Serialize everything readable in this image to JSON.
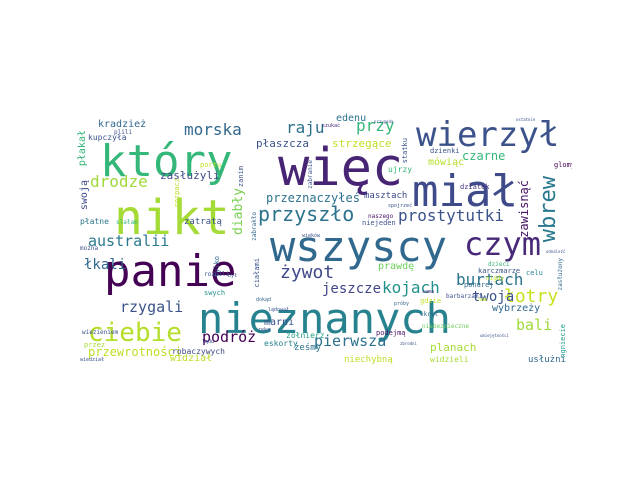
{
  "title": "",
  "words": [
    {
      "text": "więc",
      "color": "#482475"
    },
    {
      "text": "nikt",
      "color": "#a5db36"
    },
    {
      "text": "który",
      "color": "#35b779"
    },
    {
      "text": "panie",
      "color": "#440154"
    },
    {
      "text": "miał",
      "color": "#3e4a89"
    },
    {
      "text": "wszyscy",
      "color": "#31688e"
    },
    {
      "text": "nieznanych",
      "color": "#26828e"
    },
    {
      "text": "wierzył",
      "color": "#3b528b"
    },
    {
      "text": "czym",
      "color": "#482878"
    },
    {
      "text": "ciebie",
      "color": "#b5de2b"
    },
    {
      "text": "przyszło",
      "color": "#2c728e"
    },
    {
      "text": "wbrew",
      "color": "#2a788e"
    },
    {
      "text": "prostytutki",
      "color": "#3b528b"
    },
    {
      "text": "żywot",
      "color": "#3e4989"
    },
    {
      "text": "morska",
      "color": "#31688e"
    },
    {
      "text": "raju",
      "color": "#2d708e"
    },
    {
      "text": "przy",
      "color": "#35b779"
    },
    {
      "text": "drodze",
      "color": "#a0da39"
    },
    {
      "text": "australii",
      "color": "#2a788e"
    },
    {
      "text": "rzygali",
      "color": "#3b528b"
    },
    {
      "text": "kojach",
      "color": "#21918c"
    },
    {
      "text": "burtach",
      "color": "#2c728e"
    },
    {
      "text": "łotry",
      "color": "#cae11f"
    },
    {
      "text": "podróż",
      "color": "#440154"
    },
    {
      "text": "pierwsza",
      "color": "#2c728e"
    },
    {
      "text": "bali",
      "color": "#a0da39"
    },
    {
      "text": "twoja",
      "color": "#3b528b"
    },
    {
      "text": "jeszcze",
      "color": "#414487"
    },
    {
      "text": "diabły",
      "color": "#7ad151"
    },
    {
      "text": "łkali",
      "color": "#31688e"
    },
    {
      "text": "zawisnąć",
      "color": "#471365"
    },
    {
      "text": "przeznaczyłeś",
      "color": "#2c728e"
    },
    {
      "text": "przewrotności",
      "color": "#bddf26"
    },
    {
      "text": "zasłużyli",
      "color": "#3e4a89"
    },
    {
      "text": "czarne",
      "color": "#35b779"
    },
    {
      "text": "strzegące",
      "color": "#bddf26"
    },
    {
      "text": "płaszcza",
      "color": "#3b528b"
    },
    {
      "text": "kradzież",
      "color": "#31688e"
    },
    {
      "text": "edenu",
      "color": "#2c728e"
    },
    {
      "text": "mówiąc",
      "color": "#b5de2b"
    },
    {
      "text": "masztach",
      "color": "#3e4989"
    },
    {
      "text": "wybrzeży",
      "color": "#31688e"
    },
    {
      "text": "planach",
      "color": "#a5db36"
    },
    {
      "text": "prawdę",
      "color": "#6ccd5a"
    },
    {
      "text": "marni",
      "color": "#3b528b"
    },
    {
      "text": "zatratą",
      "color": "#3b528b"
    },
    {
      "text": "swoją",
      "color": "#3e4989"
    },
    {
      "text": "płatne",
      "color": "#2a788e"
    },
    {
      "text": "płakał",
      "color": "#35b779"
    },
    {
      "text": "kupczyła",
      "color": "#3b528b"
    },
    {
      "text": "eskorty",
      "color": "#26828e"
    },
    {
      "text": "żołnierz",
      "color": "#1f9e89"
    },
    {
      "text": "podejmą",
      "color": "#471365"
    },
    {
      "text": "niebezpieczne",
      "color": "#6ccd5a"
    },
    {
      "text": "widział",
      "color": "#bddf26"
    },
    {
      "text": "niechybną",
      "color": "#bddf26"
    },
    {
      "text": "usłużni",
      "color": "#31688e"
    },
    {
      "text": "widzieli",
      "color": "#a5db36"
    },
    {
      "text": "robaczywych",
      "color": "#3e4a89"
    },
    {
      "text": "wiezieniem",
      "color": "#3b528b"
    },
    {
      "text": "dzienki",
      "color": "#3b528b"
    },
    {
      "text": "dziatek",
      "color": "#46327e"
    },
    {
      "text": "ujrzy",
      "color": "#35b779"
    },
    {
      "text": "niejeden",
      "color": "#3b528b"
    },
    {
      "text": "karczmarze",
      "color": "#3b528b"
    },
    {
      "text": "rozpacz",
      "color": "#bddf26"
    },
    {
      "text": "gdzie",
      "color": "#bddf26"
    },
    {
      "text": "celu",
      "color": "#26828e"
    },
    {
      "text": "glomy",
      "color": "#440154"
    },
    {
      "text": "ponurej",
      "color": "#31688e"
    },
    {
      "text": "okręt",
      "color": "#31688e"
    },
    {
      "text": "portu",
      "color": "#bddf26"
    },
    {
      "text": "ciałami",
      "color": "#3b528b"
    },
    {
      "text": "swych",
      "color": "#21918c"
    },
    {
      "text": "tylko",
      "color": "#31688e"
    },
    {
      "text": "zanim",
      "color": "#3b528b"
    },
    {
      "text": "dzieci",
      "color": "#35b779"
    },
    {
      "text": "żeśmy",
      "color": "#2c728e"
    },
    {
      "text": "przez",
      "color": "#a5db36"
    },
    {
      "text": "nigdy",
      "color": "#bddf26"
    },
    {
      "text": "ngniecie",
      "color": "#1f9e89"
    },
    {
      "text": "statku",
      "color": "#3b528b"
    },
    {
      "text": "barbarzami",
      "color": "#3b528b"
    },
    {
      "text": "szukać",
      "color": "#482878"
    },
    {
      "text": "slałam",
      "color": "#35b779"
    },
    {
      "text": "można",
      "color": "#3b528b"
    },
    {
      "text": "rożnili",
      "color": "#3b528b"
    },
    {
      "text": "naszego",
      "color": "#471365"
    },
    {
      "text": "wiedział",
      "color": "#3b528b"
    },
    {
      "text": "zasłużony",
      "color": "#31688e"
    },
    {
      "text": "plili",
      "color": "#3b528b"
    },
    {
      "text": "dokąd",
      "color": "#31688e"
    },
    {
      "text": "lądował",
      "color": "#3b528b"
    },
    {
      "text": "spojrzeć",
      "color": "#3b528b"
    },
    {
      "text": "zabrakło",
      "color": "#31688e"
    },
    {
      "text": "był",
      "color": "#3b528b"
    },
    {
      "text": "nam",
      "color": "#bddf26"
    },
    {
      "text": "sama",
      "color": "#46327e"
    },
    {
      "text": "zabranie",
      "color": "#3b528b"
    },
    {
      "text": "wieków",
      "color": "#3b528b"
    },
    {
      "text": "przygoda",
      "color": "#3b528b"
    },
    {
      "text": "próby",
      "color": "#31688e"
    },
    {
      "text": "lądu",
      "color": "#3b528b"
    },
    {
      "text": "ręka",
      "color": "#3b528b"
    },
    {
      "text": "odnaleźć",
      "color": "#3b528b"
    },
    {
      "text": "umiejętności",
      "color": "#3b528b"
    },
    {
      "text": "zbrodni",
      "color": "#3b528b"
    },
    {
      "text": "ostatnie",
      "color": "#3b528b"
    }
  ]
}
